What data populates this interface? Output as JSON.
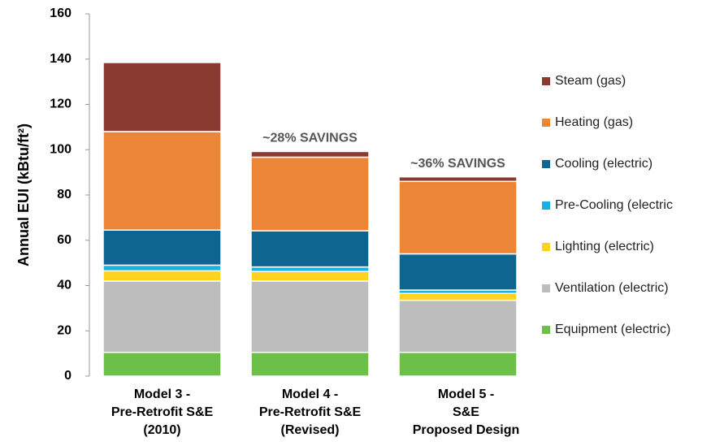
{
  "chart_data": {
    "type": "stacked_bar",
    "y_label": "Annual EUI (kBtu/ft²)",
    "categories": [
      [
        "Model 3 -",
        "Pre-Retrofit S&E",
        "(2010)"
      ],
      [
        "Model 4 -",
        "Pre-Retrofit S&E",
        "(Revised)"
      ],
      [
        "Model 5 -",
        "S&E",
        "Proposed Design"
      ]
    ],
    "series": [
      {
        "name": "Equipment (electric)",
        "color": "#6cc04a",
        "values": [
          10.5,
          10.5,
          10.5
        ]
      },
      {
        "name": "Ventilation (electric)",
        "color": "#bdbdbd",
        "values": [
          31.5,
          31.5,
          23
        ]
      },
      {
        "name": "Lighting (electric)",
        "color": "#ffd21f",
        "values": [
          4.5,
          4.2,
          3
        ]
      },
      {
        "name": "Pre-Cooling (electric",
        "color": "#1cb0e0",
        "values": [
          2.5,
          2,
          1.5
        ]
      },
      {
        "name": "Cooling (electric)",
        "color": "#0e6590",
        "values": [
          15.5,
          16,
          16
        ]
      },
      {
        "name": "Heating (gas)",
        "color": "#ed8536",
        "values": [
          43.5,
          32.5,
          32
        ]
      },
      {
        "name": "Steam (gas)",
        "color": "#8b3a32",
        "values": [
          30.5,
          2.5,
          2
        ]
      }
    ],
    "annotations": [
      "~28% SAVINGS",
      "~36% SAVINGS"
    ],
    "ylim": [
      0,
      160
    ],
    "yticks": [
      0,
      20,
      40,
      60,
      80,
      100,
      120,
      140,
      160
    ]
  }
}
